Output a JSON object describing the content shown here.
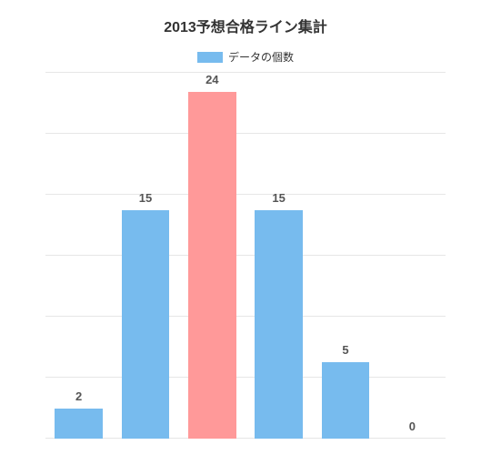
{
  "chart": {
    "type": "bar",
    "title": "2013予想合格ライン集計",
    "title_fontsize": 16,
    "title_color": "#333333",
    "legend": {
      "label": "データの個数",
      "swatch_color": "#77bbee"
    },
    "categories": [
      "",
      "",
      "",
      "",
      "",
      ""
    ],
    "values": [
      2,
      15,
      24,
      15,
      5,
      0
    ],
    "bar_colors": [
      "#77bbee",
      "#77bbee",
      "#ff9999",
      "#77bbee",
      "#77bbee",
      "#77bbee"
    ],
    "ymax": 24,
    "grid_steps": 6,
    "grid_color": "#e6e6e6",
    "background_color": "#ffffff",
    "value_label_color": "#555555",
    "value_label_fontsize": 13,
    "bar_width_pct": 72
  }
}
